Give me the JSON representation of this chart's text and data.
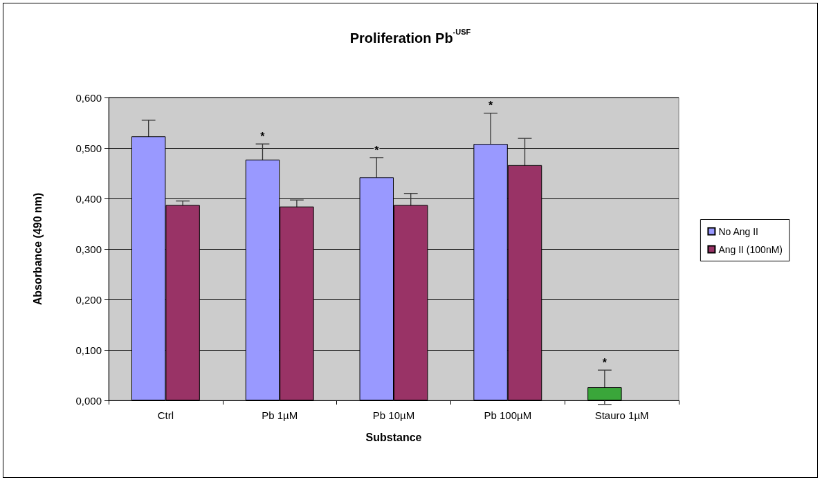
{
  "chart_data": {
    "type": "bar",
    "title": "Proliferation Pb$^{-USF}$",
    "xlabel": "Substance",
    "ylabel": "Absorbance (490 nm)",
    "categories": [
      "Ctrl",
      "Pb 1µM",
      "Pb 10µM",
      "Pb 100µM",
      "Stauro 1µM"
    ],
    "series": [
      {
        "name": "No Ang II",
        "color": "#9999ff",
        "value_labels": [
          null,
          "*",
          "*",
          "*",
          "*"
        ],
        "colors": [
          "#9999ff",
          "#9999ff",
          "#9999ff",
          "#9999ff",
          "#3aa63a"
        ],
        "values": [
          0.523,
          0.477,
          0.442,
          0.508,
          0.026
        ],
        "errors": [
          0.032,
          0.031,
          0.039,
          0.061,
          0.034
        ]
      },
      {
        "name": "Ang II (100nM)",
        "color": "#993366",
        "values": [
          0.387,
          0.384,
          0.387,
          0.466,
          null
        ],
        "errors": [
          0.008,
          0.013,
          0.023,
          0.053,
          null
        ]
      }
    ],
    "ylim": [
      0,
      0.6
    ],
    "yticks": [
      {
        "value": 0,
        "label": "0,000"
      },
      {
        "value": 0.1,
        "label": "0,100"
      },
      {
        "value": 0.2,
        "label": "0,200"
      },
      {
        "value": 0.3,
        "label": "0,300"
      },
      {
        "value": 0.4,
        "label": "0,400"
      },
      {
        "value": 0.5,
        "label": "0,500"
      },
      {
        "value": 0.6,
        "label": "0,600"
      }
    ],
    "grid": "y",
    "legend": "right"
  }
}
